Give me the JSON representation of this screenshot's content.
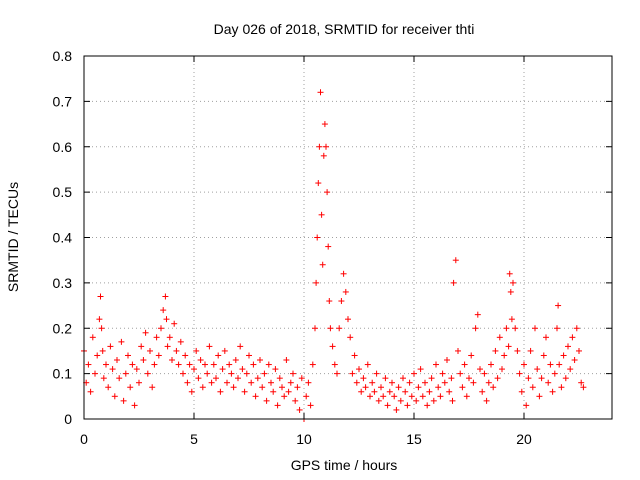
{
  "chart_data": {
    "type": "scatter",
    "title": "Day 026 of 2018, SRMTID for receiver thti",
    "xlabel": "GPS time / hours",
    "ylabel": "SRMTID / TECUs",
    "xlim": [
      0,
      24
    ],
    "ylim": [
      0,
      0.8
    ],
    "x_ticks": [
      0,
      5,
      10,
      15,
      20
    ],
    "x_tick_labels": [
      "0",
      "5",
      "10",
      "15",
      "20"
    ],
    "y_ticks": [
      0,
      0.1,
      0.2,
      0.3,
      0.4,
      0.5,
      0.6,
      0.7,
      0.8
    ],
    "y_tick_labels": [
      "0",
      "0.1",
      "0.2",
      "0.3",
      "0.4",
      "0.5",
      "0.6",
      "0.7",
      "0.8"
    ],
    "grid": true,
    "marker": "+",
    "color": "#ff0000",
    "series": [
      {
        "name": "SRMTID",
        "x": [
          0.0,
          0.1,
          0.2,
          0.3,
          0.4,
          0.5,
          0.6,
          0.7,
          0.75,
          0.8,
          0.85,
          0.9,
          1.0,
          1.1,
          1.2,
          1.3,
          1.4,
          1.5,
          1.6,
          1.7,
          1.8,
          1.9,
          2.0,
          2.1,
          2.2,
          2.3,
          2.4,
          2.5,
          2.6,
          2.7,
          2.8,
          2.9,
          3.0,
          3.1,
          3.2,
          3.3,
          3.4,
          3.5,
          3.6,
          3.7,
          3.75,
          3.8,
          3.9,
          4.0,
          4.1,
          4.2,
          4.3,
          4.4,
          4.5,
          4.6,
          4.7,
          4.8,
          4.9,
          5.0,
          5.1,
          5.2,
          5.3,
          5.4,
          5.5,
          5.6,
          5.7,
          5.8,
          5.9,
          6.0,
          6.1,
          6.2,
          6.3,
          6.4,
          6.5,
          6.6,
          6.7,
          6.8,
          6.9,
          7.0,
          7.1,
          7.2,
          7.3,
          7.4,
          7.5,
          7.6,
          7.7,
          7.8,
          7.9,
          8.0,
          8.1,
          8.2,
          8.3,
          8.4,
          8.5,
          8.6,
          8.7,
          8.8,
          8.9,
          9.0,
          9.1,
          9.2,
          9.3,
          9.4,
          9.5,
          9.6,
          9.7,
          9.8,
          9.9,
          10.0,
          10.1,
          10.2,
          10.3,
          10.4,
          10.5,
          10.55,
          10.6,
          10.65,
          10.7,
          10.75,
          10.8,
          10.85,
          10.9,
          10.95,
          11.0,
          11.05,
          11.1,
          11.15,
          11.2,
          11.3,
          11.4,
          11.5,
          11.6,
          11.7,
          11.8,
          11.9,
          12.0,
          12.1,
          12.2,
          12.3,
          12.4,
          12.5,
          12.6,
          12.7,
          12.8,
          12.9,
          13.0,
          13.1,
          13.2,
          13.3,
          13.4,
          13.5,
          13.6,
          13.7,
          13.8,
          13.9,
          14.0,
          14.1,
          14.2,
          14.3,
          14.4,
          14.5,
          14.6,
          14.7,
          14.8,
          14.9,
          15.0,
          15.1,
          15.2,
          15.3,
          15.4,
          15.5,
          15.6,
          15.7,
          15.8,
          15.9,
          16.0,
          16.1,
          16.2,
          16.3,
          16.4,
          16.5,
          16.6,
          16.7,
          16.75,
          16.8,
          16.9,
          17.0,
          17.1,
          17.2,
          17.3,
          17.4,
          17.5,
          17.6,
          17.7,
          17.8,
          17.9,
          18.0,
          18.1,
          18.2,
          18.3,
          18.4,
          18.5,
          18.6,
          18.7,
          18.8,
          18.9,
          19.0,
          19.1,
          19.2,
          19.3,
          19.35,
          19.4,
          19.45,
          19.5,
          19.6,
          19.7,
          19.8,
          19.9,
          20.0,
          20.1,
          20.2,
          20.3,
          20.4,
          20.5,
          20.6,
          20.7,
          20.8,
          20.9,
          21.0,
          21.1,
          21.2,
          21.3,
          21.4,
          21.5,
          21.55,
          21.6,
          21.7,
          21.8,
          21.9,
          22.0,
          22.1,
          22.2,
          22.3,
          22.4,
          22.5,
          22.6,
          22.7
        ],
        "y": [
          0.15,
          0.08,
          0.12,
          0.06,
          0.18,
          0.1,
          0.14,
          0.22,
          0.27,
          0.2,
          0.15,
          0.09,
          0.12,
          0.07,
          0.16,
          0.11,
          0.05,
          0.13,
          0.09,
          0.17,
          0.04,
          0.1,
          0.14,
          0.07,
          0.12,
          0.03,
          0.11,
          0.08,
          0.16,
          0.13,
          0.19,
          0.1,
          0.15,
          0.07,
          0.12,
          0.18,
          0.14,
          0.2,
          0.24,
          0.27,
          0.22,
          0.16,
          0.18,
          0.13,
          0.21,
          0.15,
          0.12,
          0.17,
          0.1,
          0.14,
          0.08,
          0.12,
          0.06,
          0.11,
          0.15,
          0.09,
          0.13,
          0.07,
          0.12,
          0.1,
          0.16,
          0.08,
          0.12,
          0.09,
          0.14,
          0.06,
          0.11,
          0.15,
          0.08,
          0.12,
          0.1,
          0.07,
          0.13,
          0.09,
          0.16,
          0.11,
          0.06,
          0.1,
          0.14,
          0.08,
          0.12,
          0.05,
          0.09,
          0.13,
          0.07,
          0.1,
          0.04,
          0.12,
          0.08,
          0.06,
          0.11,
          0.03,
          0.09,
          0.07,
          0.05,
          0.13,
          0.06,
          0.08,
          0.1,
          0.04,
          0.07,
          0.02,
          0.09,
          0.0,
          0.05,
          0.08,
          0.03,
          0.12,
          0.2,
          0.3,
          0.4,
          0.52,
          0.6,
          0.72,
          0.45,
          0.34,
          0.58,
          0.65,
          0.6,
          0.5,
          0.38,
          0.26,
          0.2,
          0.16,
          0.12,
          0.1,
          0.2,
          0.26,
          0.32,
          0.28,
          0.22,
          0.18,
          0.1,
          0.14,
          0.08,
          0.11,
          0.06,
          0.09,
          0.07,
          0.12,
          0.05,
          0.08,
          0.06,
          0.1,
          0.04,
          0.07,
          0.05,
          0.09,
          0.03,
          0.06,
          0.08,
          0.05,
          0.02,
          0.07,
          0.04,
          0.09,
          0.06,
          0.03,
          0.08,
          0.05,
          0.1,
          0.04,
          0.07,
          0.11,
          0.05,
          0.08,
          0.03,
          0.06,
          0.09,
          0.04,
          0.12,
          0.07,
          0.05,
          0.1,
          0.08,
          0.13,
          0.06,
          0.09,
          0.04,
          0.3,
          0.35,
          0.15,
          0.1,
          0.07,
          0.12,
          0.05,
          0.09,
          0.14,
          0.08,
          0.2,
          0.23,
          0.11,
          0.06,
          0.1,
          0.04,
          0.08,
          0.12,
          0.07,
          0.15,
          0.09,
          0.18,
          0.11,
          0.14,
          0.2,
          0.16,
          0.32,
          0.28,
          0.22,
          0.3,
          0.2,
          0.15,
          0.1,
          0.06,
          0.12,
          0.03,
          0.09,
          0.15,
          0.07,
          0.2,
          0.11,
          0.05,
          0.09,
          0.14,
          0.18,
          0.08,
          0.12,
          0.06,
          0.1,
          0.2,
          0.25,
          0.12,
          0.07,
          0.14,
          0.09,
          0.16,
          0.11,
          0.18,
          0.13,
          0.2,
          0.15,
          0.08,
          0.07
        ]
      }
    ]
  }
}
